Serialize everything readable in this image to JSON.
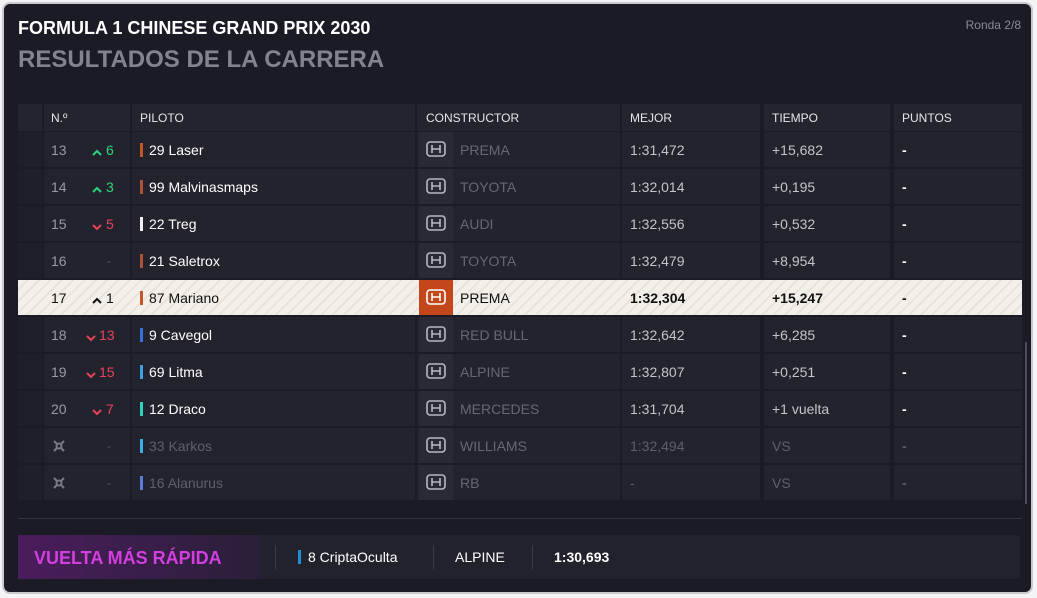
{
  "header": {
    "title": "FORMULA 1 CHINESE GRAND PRIX 2030",
    "subtitle": "RESULTADOS DE LA CARRERA",
    "round": "Ronda 2/8"
  },
  "table": {
    "columns": [
      "N.º",
      "PILOTO",
      "CONSTRUCTOR",
      "MEJOR",
      "TIEMPO",
      "PUNTOS"
    ],
    "rows": [
      {
        "position": 13,
        "trend": "up",
        "change": 6,
        "driver": "29 Laser",
        "team_color": "#c0562a",
        "constructor": "PREMA",
        "best": "1:31,472",
        "time": "+15,682",
        "points": "-",
        "highlighted": false
      },
      {
        "position": 14,
        "trend": "up",
        "change": 3,
        "driver": "99 Malvinasmaps",
        "team_color": "#b0503a",
        "constructor": "TOYOTA",
        "best": "1:32,014",
        "time": "+0,195",
        "points": "-",
        "highlighted": false
      },
      {
        "position": 15,
        "trend": "down",
        "change": 5,
        "driver": "22 Treg",
        "team_color": "#f0f0f0",
        "constructor": "AUDI",
        "best": "1:32,556",
        "time": "+0,532",
        "points": "-",
        "highlighted": false
      },
      {
        "position": 16,
        "trend": null,
        "change": "-",
        "driver": "21 Saletrox",
        "team_color": "#b0503a",
        "constructor": "TOYOTA",
        "best": "1:32,479",
        "time": "+8,954",
        "points": "-",
        "highlighted": false
      },
      {
        "position": 17,
        "trend": "up",
        "change": 1,
        "driver": "87 Mariano",
        "team_color": "#c0562a",
        "constructor": "PREMA",
        "best": "1:32,304",
        "time": "+15,247",
        "points": "-",
        "highlighted": true
      },
      {
        "position": 18,
        "trend": "down",
        "change": 13,
        "driver": "9 Cavegol",
        "team_color": "#3a6fd8",
        "constructor": "RED BULL",
        "best": "1:32,642",
        "time": "+6,285",
        "points": "-",
        "highlighted": false
      },
      {
        "position": 19,
        "trend": "down",
        "change": 15,
        "driver": "69 Litma",
        "team_color": "#3aa0e0",
        "constructor": "ALPINE",
        "best": "1:32,807",
        "time": "+0,251",
        "points": "-",
        "highlighted": false
      },
      {
        "position": 20,
        "trend": "down",
        "change": 7,
        "driver": "12 Draco",
        "team_color": "#2ed3c0",
        "constructor": "MERCEDES",
        "best": "1:31,704",
        "time": "+1 vuelta",
        "points": "-",
        "highlighted": false
      },
      {
        "position": null,
        "trend": null,
        "change": "-",
        "driver": "33 Karkos",
        "team_color": "#3ab0e8",
        "constructor": "WILLIAMS",
        "best": "1:32,494",
        "time": "VS",
        "points": "-",
        "highlighted": false
      },
      {
        "position": null,
        "trend": null,
        "change": "-",
        "driver": "16 Alanurus",
        "team_color": "#5a7ae0",
        "constructor": "RB",
        "best": "-",
        "time": "VS",
        "points": "-",
        "highlighted": false
      }
    ]
  },
  "footer": {
    "label": "VUELTA MÁS RÁPIDA",
    "driver": "8 CriptaOculta",
    "driver_color": "#1e8fd6",
    "constructor": "ALPINE",
    "time": "1:30,693"
  }
}
